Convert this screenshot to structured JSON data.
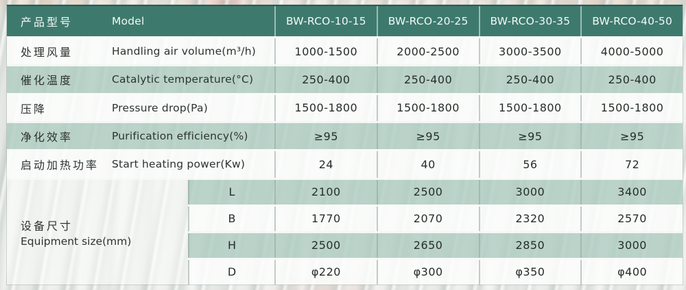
{
  "colors": {
    "header_bg": "#3d7a6d",
    "header_top_edge": "#2d584e",
    "row_green": "#c5d9d0",
    "row_white": "#fbfcfb",
    "header_text": "#f4f8f6",
    "body_text": "#2d3330"
  },
  "table": {
    "header": {
      "label_cn": "产品型号",
      "label_en": "Model",
      "models": [
        "BW-RCO-10-15",
        "BW-RCO-20-25",
        "BW-RCO-30-35",
        "BW-RCO-40-50"
      ]
    },
    "rows": [
      {
        "cn": "处理风量",
        "en": "Handling air volume(m³/h)",
        "values": [
          "1000-1500",
          "2000-2500",
          "3000-3500",
          "4000-5000"
        ]
      },
      {
        "cn": "催化温度",
        "en": "Catalytic temperature(°C)",
        "values": [
          "250-400",
          "250-400",
          "250-400",
          "250-400"
        ]
      },
      {
        "cn": "压降",
        "en": "Pressure drop(Pa)",
        "values": [
          "1500-1800",
          "1500-1800",
          "1500-1800",
          "1500-1800"
        ]
      },
      {
        "cn": "净化效率",
        "en": "Purification efficiency(%)",
        "values": [
          "≥95",
          "≥95",
          "≥95",
          "≥95"
        ]
      },
      {
        "cn": "启动加热功率",
        "en": "Start heating power(Kw)",
        "values": [
          "24",
          "40",
          "56",
          "72"
        ]
      }
    ],
    "equipment": {
      "label_cn": "设备尺寸",
      "label_en": "Equipment size(mm)",
      "dims": [
        {
          "dim": "L",
          "values": [
            "2100",
            "2500",
            "3000",
            "3400"
          ]
        },
        {
          "dim": "B",
          "values": [
            "1770",
            "2070",
            "2320",
            "2570"
          ]
        },
        {
          "dim": "H",
          "values": [
            "2500",
            "2650",
            "2850",
            "3000"
          ]
        },
        {
          "dim": "D",
          "values": [
            "φ220",
            "φ300",
            "φ350",
            "φ400"
          ]
        }
      ]
    }
  }
}
